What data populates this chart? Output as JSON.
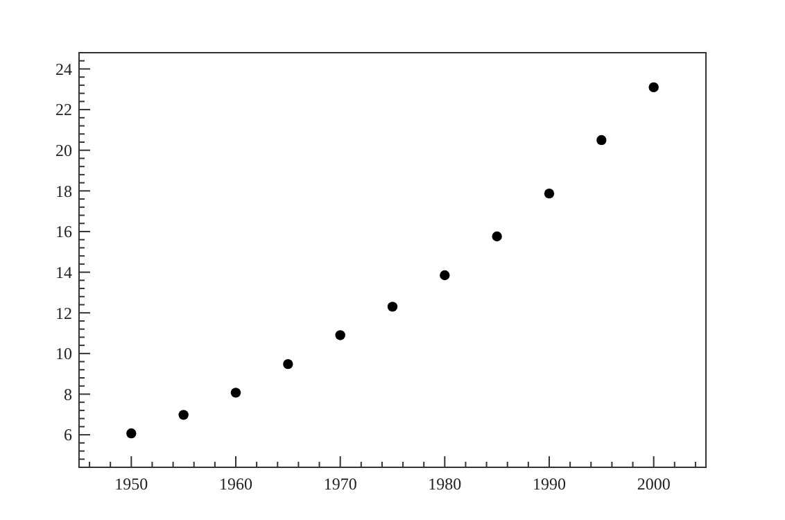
{
  "chart_data": {
    "type": "scatter",
    "x": [
      1950,
      1955,
      1960,
      1965,
      1970,
      1975,
      1980,
      1985,
      1990,
      1995,
      2000
    ],
    "values": [
      6.07,
      6.98,
      8.07,
      9.48,
      10.9,
      12.3,
      13.85,
      15.76,
      17.87,
      20.5,
      23.1
    ],
    "color": "#000000",
    "marker": "circle",
    "grid": false,
    "xlim": [
      1945,
      2005
    ],
    "xticks": [
      {
        "value": 1946,
        "label": null
      },
      {
        "value": 1948,
        "label": null
      },
      1950,
      {
        "value": 1952,
        "label": null
      },
      {
        "value": 1954,
        "label": null
      },
      {
        "value": 1956,
        "label": null
      },
      {
        "value": 1958,
        "label": null
      },
      1960,
      {
        "value": 1962,
        "label": null
      },
      {
        "value": 1964,
        "label": null
      },
      {
        "value": 1966,
        "label": null
      },
      {
        "value": 1968,
        "label": null
      },
      1970,
      {
        "value": 1972,
        "label": null
      },
      {
        "value": 1974,
        "label": null
      },
      {
        "value": 1976,
        "label": null
      },
      {
        "value": 1978,
        "label": null
      },
      1980,
      {
        "value": 1982,
        "label": null
      },
      {
        "value": 1984,
        "label": null
      },
      {
        "value": 1986,
        "label": null
      },
      {
        "value": 1988,
        "label": null
      },
      1990,
      {
        "value": 1992,
        "label": null
      },
      {
        "value": 1994,
        "label": null
      },
      {
        "value": 1996,
        "label": null
      },
      {
        "value": 1998,
        "label": null
      },
      2000,
      {
        "value": 2002,
        "label": null
      },
      {
        "value": 2004,
        "label": null
      }
    ],
    "ylim": [
      4.4,
      24.8
    ],
    "yticks": [
      {
        "value": 4.8,
        "label": null
      },
      {
        "value": 5.2,
        "label": null
      },
      {
        "value": 5.6,
        "label": null
      },
      6,
      {
        "value": 6.4,
        "label": null
      },
      {
        "value": 6.8,
        "label": null
      },
      {
        "value": 7.2,
        "label": null
      },
      {
        "value": 7.6,
        "label": null
      },
      8,
      {
        "value": 8.4,
        "label": null
      },
      {
        "value": 8.8,
        "label": null
      },
      {
        "value": 9.2,
        "label": null
      },
      {
        "value": 9.6,
        "label": null
      },
      10,
      {
        "value": 10.4,
        "label": null
      },
      {
        "value": 10.8,
        "label": null
      },
      {
        "value": 11.2,
        "label": null
      },
      {
        "value": 11.6,
        "label": null
      },
      12,
      {
        "value": 12.4,
        "label": null
      },
      {
        "value": 12.8,
        "label": null
      },
      {
        "value": 13.2,
        "label": null
      },
      {
        "value": 13.6,
        "label": null
      },
      14,
      {
        "value": 14.4,
        "label": null
      },
      {
        "value": 14.8,
        "label": null
      },
      {
        "value": 15.2,
        "label": null
      },
      {
        "value": 15.6,
        "label": null
      },
      16,
      {
        "value": 16.4,
        "label": null
      },
      {
        "value": 16.8,
        "label": null
      },
      {
        "value": 17.2,
        "label": null
      },
      {
        "value": 17.6,
        "label": null
      },
      18,
      {
        "value": 18.4,
        "label": null
      },
      {
        "value": 18.8,
        "label": null
      },
      {
        "value": 19.2,
        "label": null
      },
      {
        "value": 19.6,
        "label": null
      },
      20,
      {
        "value": 20.4,
        "label": null
      },
      {
        "value": 20.8,
        "label": null
      },
      {
        "value": 21.2,
        "label": null
      },
      {
        "value": 21.6,
        "label": null
      },
      22,
      {
        "value": 22.4,
        "label": null
      },
      {
        "value": 22.8,
        "label": null
      },
      {
        "value": 23.2,
        "label": null
      },
      {
        "value": 23.6,
        "label": null
      },
      24,
      {
        "value": 24.4,
        "label": null
      }
    ]
  }
}
